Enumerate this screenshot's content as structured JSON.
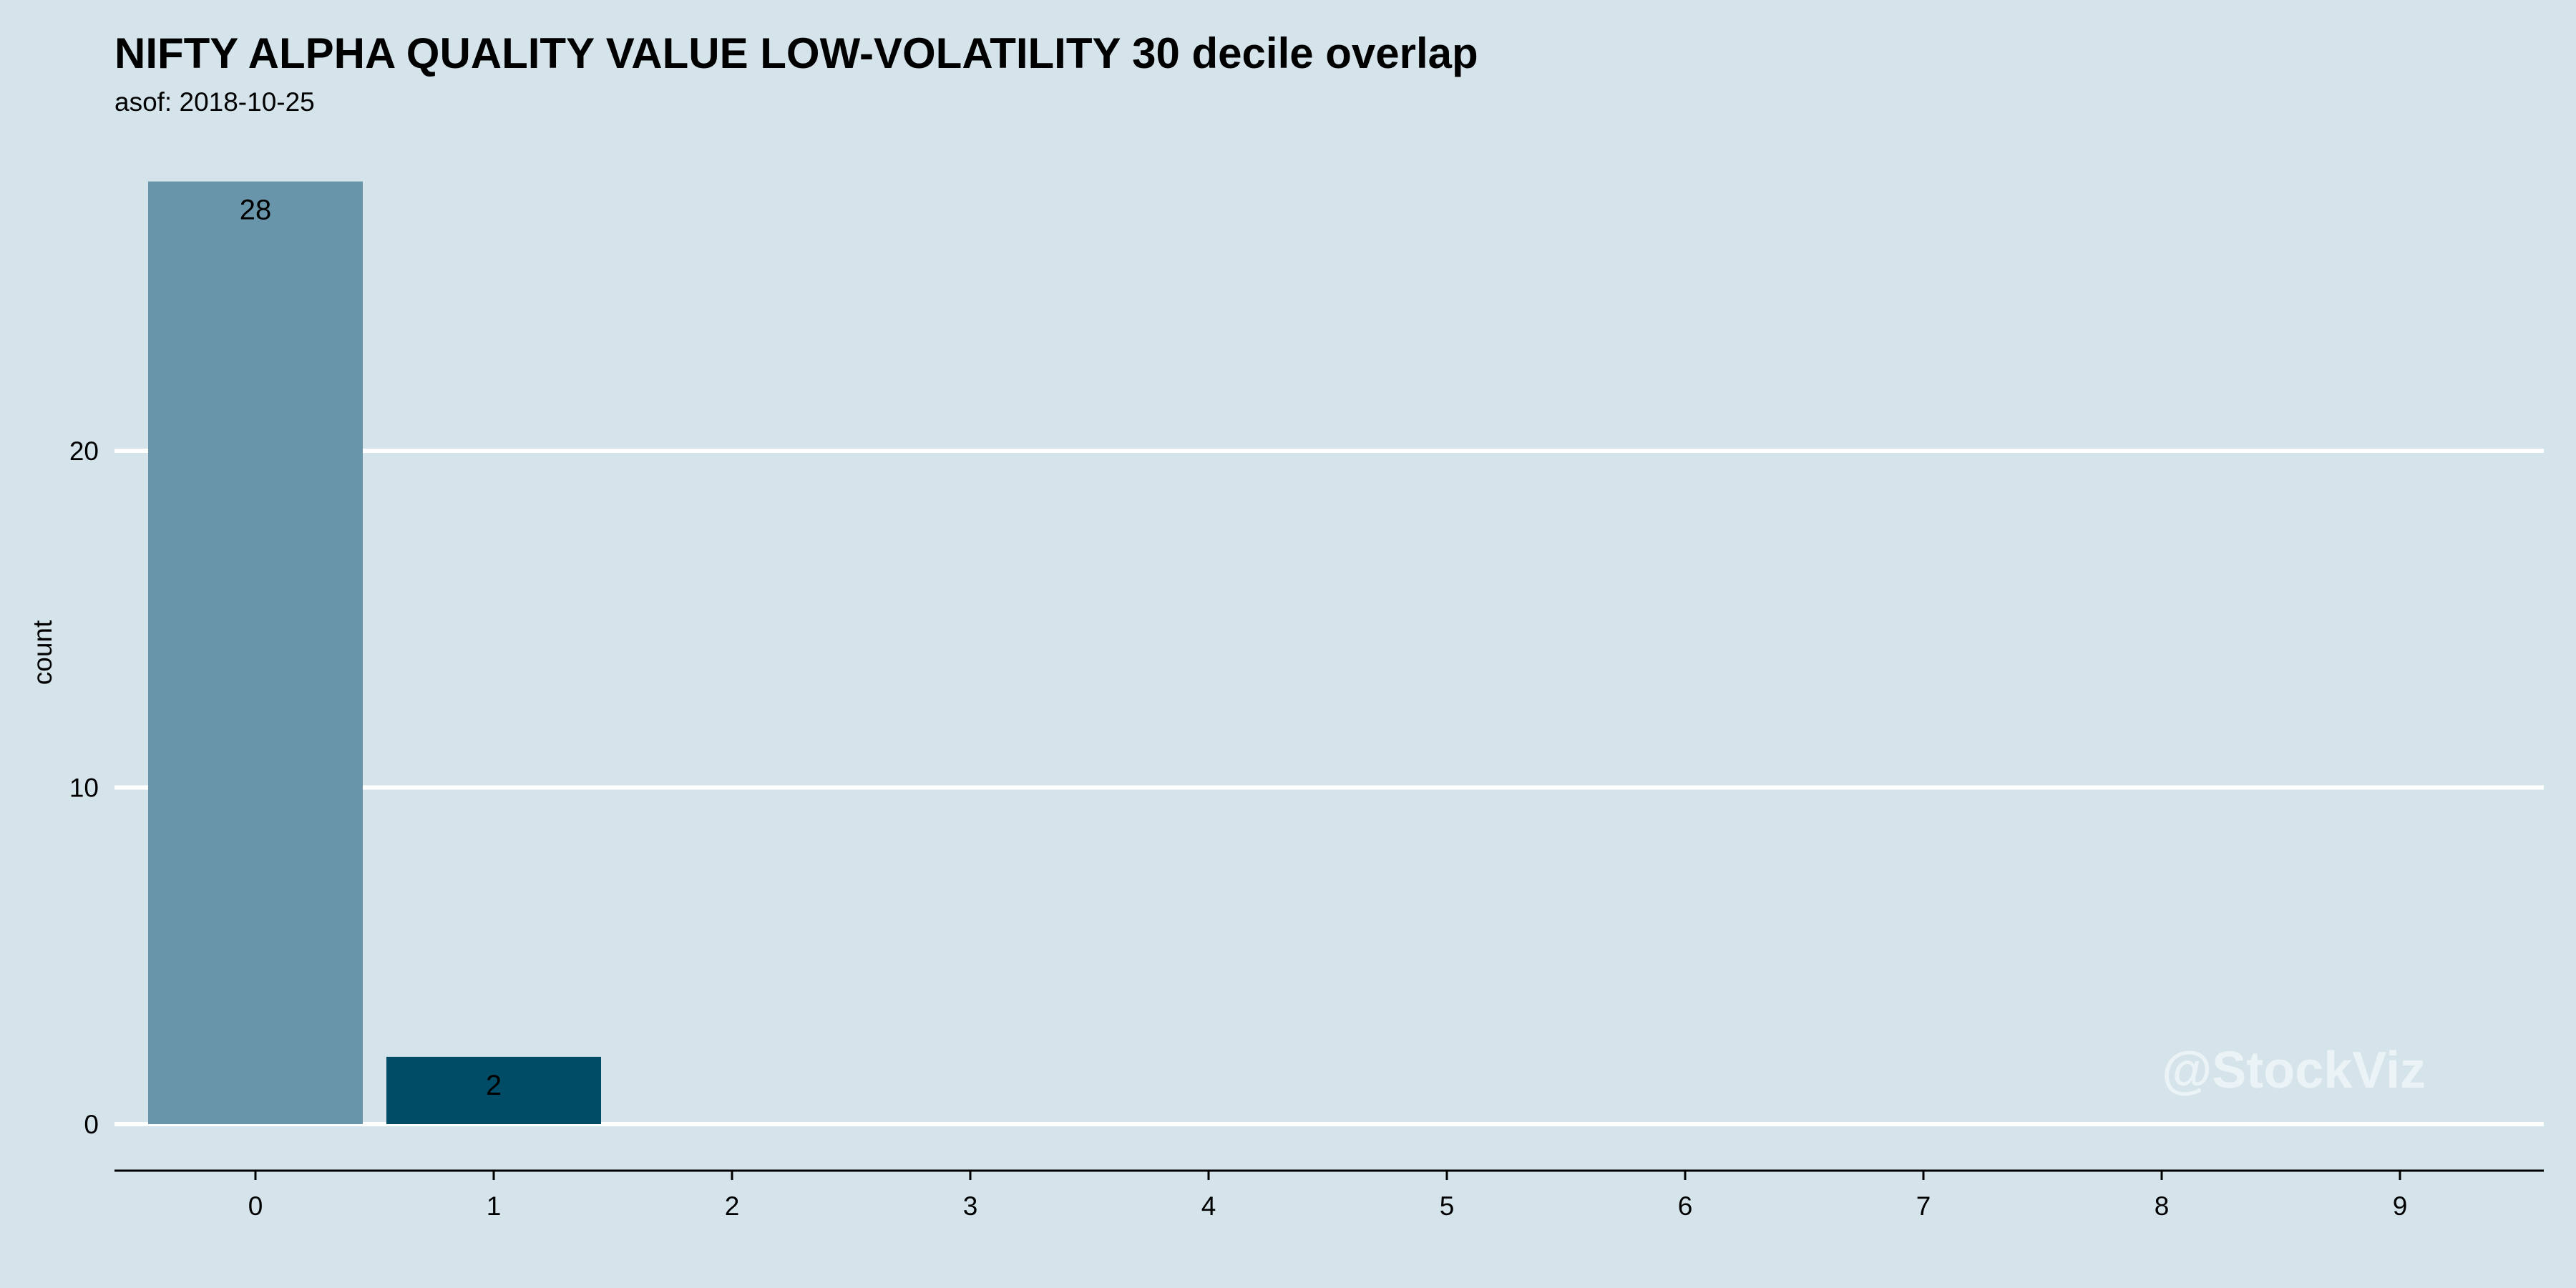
{
  "chart_data": {
    "type": "bar",
    "title": "NIFTY ALPHA QUALITY VALUE LOW-VOLATILITY 30 decile overlap",
    "subtitle": "asof: 2018-10-25",
    "xlabel": "",
    "ylabel": "count",
    "categories": [
      "0",
      "1",
      "2",
      "3",
      "4",
      "5",
      "6",
      "7",
      "8",
      "9"
    ],
    "values": [
      28,
      2,
      null,
      null,
      null,
      null,
      null,
      null,
      null,
      null
    ],
    "data_labels": [
      "28",
      "2",
      "",
      "",
      "",
      "",
      "",
      "",
      "",
      ""
    ],
    "bar_colors": [
      "#6895a9",
      "#004c66"
    ],
    "ylim": [
      0,
      28
    ],
    "yticks": [
      0,
      10,
      20
    ],
    "grid": "horizontal",
    "legend": "none"
  },
  "watermark": "@StockViz",
  "colors": {
    "background": "#d5e4eb",
    "gridline": "#ffffff",
    "axis": "#000000"
  }
}
